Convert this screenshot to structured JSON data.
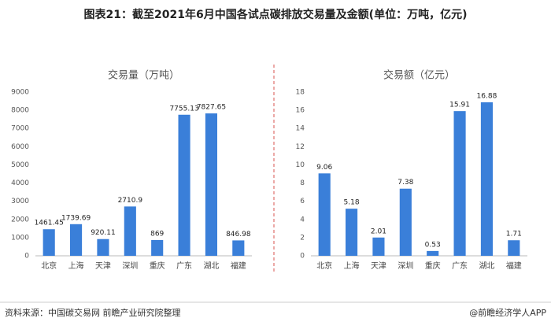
{
  "title": "图表21：截至2021年6月中国各试点碳排放交易量及金额(单位：万吨，亿元)",
  "chart_data": [
    {
      "type": "bar",
      "title": "交易量（万吨）",
      "categories": [
        "北京",
        "上海",
        "天津",
        "深圳",
        "重庆",
        "广东",
        "湖北",
        "福建"
      ],
      "values": [
        1461.45,
        1739.69,
        920.11,
        2710.9,
        869,
        7755.13,
        7827.65,
        846.98
      ],
      "color": "#3a7fd9",
      "ylim": [
        0,
        9000
      ],
      "yticks": [
        0,
        1000,
        2000,
        3000,
        4000,
        5000,
        6000,
        7000,
        8000,
        9000
      ],
      "grid": false
    },
    {
      "type": "bar",
      "title": "交易额（亿元）",
      "categories": [
        "北京",
        "上海",
        "天津",
        "深圳",
        "重庆",
        "广东",
        "湖北",
        "福建"
      ],
      "values": [
        9.06,
        5.18,
        2.01,
        7.38,
        0.53,
        15.91,
        16.88,
        1.71
      ],
      "color": "#3a7fd9",
      "ylim": [
        0,
        18
      ],
      "yticks": [
        0,
        2,
        4,
        6,
        8,
        10,
        12,
        14,
        16,
        18
      ],
      "grid": false
    }
  ],
  "footer": {
    "source": "资料来源：中国碳交易网 前瞻产业研究院整理",
    "brand": "@前瞻经济学人APP"
  }
}
